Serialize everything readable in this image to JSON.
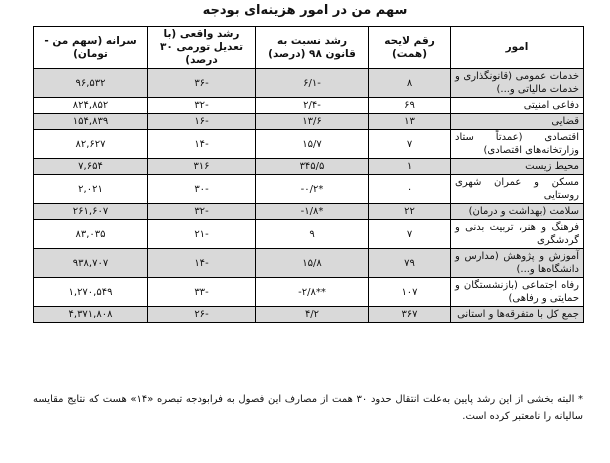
{
  "title": "سهم من در امور هزینه‌ای بودجه",
  "headers": {
    "category": "امور",
    "bill": "رقم لایحه (همت)",
    "growth_law": "رشد نسبت به قانون ۹۸ (درصد)",
    "growth_real": "رشد واقعی (با تعدیل تورمی ۳۰ درصد)",
    "per_capita": "سرانه (سهم من - تومان)"
  },
  "rows": [
    {
      "category": "خدمات عمومی (قانونگذاری و خدمات مالیاتی و...)",
      "bill": "۸",
      "growth_law": "-۶/۱",
      "growth_real": "-۳۶",
      "per_capita": "۹۶,۵۳۲",
      "shade": true
    },
    {
      "category": "دفاعی امنیتی",
      "bill": "۶۹",
      "growth_law": "-۲/۴",
      "growth_real": "-۳۲",
      "per_capita": "۸۲۴,۸۵۲",
      "shade": false
    },
    {
      "category": "قضایی",
      "bill": "۱۳",
      "growth_law": "۱۳/۶",
      "growth_real": "-۱۶",
      "per_capita": "۱۵۴,۸۳۹",
      "shade": true
    },
    {
      "category": "اقتصادی (عمدتاً ستاد وزارتخانه‌های اقتصادی)",
      "bill": "۷",
      "growth_law": "۱۵/۷",
      "growth_real": "-۱۴",
      "per_capita": "۸۲,۶۲۷",
      "shade": false
    },
    {
      "category": "محیط زیست",
      "bill": "۱",
      "growth_law": "۳۴۵/۵",
      "growth_real": "۳۱۶",
      "per_capita": "۷,۶۵۴",
      "shade": true
    },
    {
      "category": "مسکن و عمران شهری روستایی",
      "bill": "۰",
      "growth_law": "*۰/۲-",
      "growth_real": "-۳۰",
      "per_capita": "۲,۰۲۱",
      "shade": false
    },
    {
      "category": "سلامت (بهداشت و درمان)",
      "bill": "۲۲",
      "growth_law": "*۱/۸-",
      "growth_real": "-۳۲",
      "per_capita": "۲۶۱,۶۰۷",
      "shade": true
    },
    {
      "category": "فرهنگ و هنر، تربیت بدنی و گردشگری",
      "bill": "۷",
      "growth_law": "۹",
      "growth_real": "-۲۱",
      "per_capita": "۸۳,۰۳۵",
      "shade": false
    },
    {
      "category": "آموزش و پژوهش (مدارس و دانشگاه‌ها و...)",
      "bill": "۷۹",
      "growth_law": "۱۵/۸",
      "growth_real": "-۱۴",
      "per_capita": "۹۳۸,۷۰۷",
      "shade": true
    },
    {
      "category": "رفاه اجتماعی (بازنشستگان و حمایتی و رفاهی)",
      "bill": "۱۰۷",
      "growth_law": "**۲/۸-",
      "growth_real": "-۳۳",
      "per_capita": "۱,۲۷۰,۵۴۹",
      "shade": false
    },
    {
      "category": "جمع کل با متفرقه‌ها و استانی",
      "bill": "۳۶۷",
      "growth_law": "۴/۲",
      "growth_real": "-۲۶",
      "per_capita": "۴,۳۷۱,۸۰۸",
      "shade": true
    }
  ],
  "footnote": "* البته بخشی از این رشد پایین به‌علت انتقال حدود ۳۰ همت از مصارف این فصول به فرابودجه تبصره «۱۴» هست که نتایج مقایسه سالیانه را نامعتبر کرده است."
}
